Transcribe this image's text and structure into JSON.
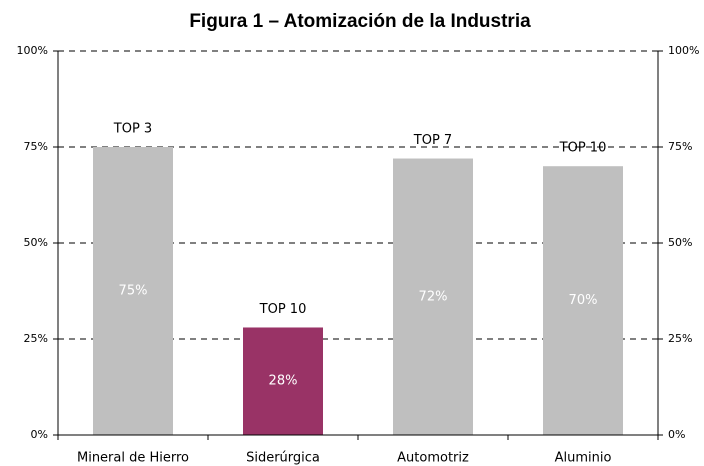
{
  "chart_data": {
    "type": "bar",
    "title": "Figura 1 – Atomización de la Industria",
    "categories": [
      "Mineral de Hierro",
      "Siderúrgica",
      "Automotriz",
      "Aluminio"
    ],
    "values": [
      75,
      28,
      72,
      70
    ],
    "value_labels": [
      "75%",
      "28%",
      "72%",
      "70%"
    ],
    "annotations": [
      "TOP 3",
      "TOP 10",
      "TOP 7",
      "TOP 10"
    ],
    "colors": [
      "#bfbfbf",
      "#993366",
      "#bfbfbf",
      "#bfbfbf"
    ],
    "ylim": [
      0,
      100
    ],
    "yticks": [
      {
        "value": 0,
        "label": "0%"
      },
      {
        "value": 25,
        "label": "25%"
      },
      {
        "value": 50,
        "label": "50%"
      },
      {
        "value": 75,
        "label": "75%"
      },
      {
        "value": 100,
        "label": "100%"
      }
    ],
    "y2lim": [
      0,
      100
    ],
    "y2ticks": [
      {
        "value": 0,
        "label": "0%"
      },
      {
        "value": 25,
        "label": "25%"
      },
      {
        "value": 50,
        "label": "50%"
      },
      {
        "value": 75,
        "label": "75%"
      },
      {
        "value": 100,
        "label": "100%"
      }
    ],
    "grid": true
  }
}
